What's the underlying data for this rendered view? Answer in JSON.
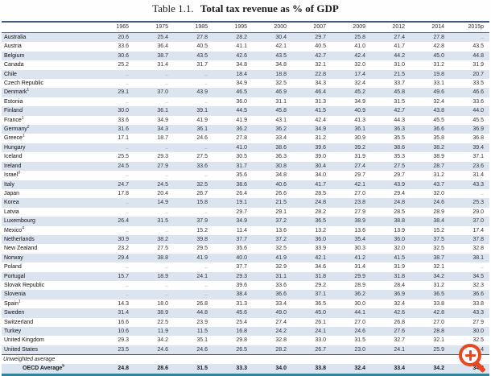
{
  "title": {
    "prefix": "Table 1.1.",
    "main": "Total tax revenue as % of GDP"
  },
  "table": {
    "year_columns": [
      "1965",
      "1975",
      "1985",
      "1995",
      "2000",
      "2007",
      "2009",
      "2012",
      "2014",
      "2015p"
    ],
    "rows": [
      {
        "label": "Australia",
        "sup": "",
        "values": [
          "20.6",
          "25.4",
          "27.8",
          "28.2",
          "30.4",
          "29.7",
          "25.8",
          "27.4",
          "27.8",
          ".."
        ]
      },
      {
        "label": "Austria",
        "sup": "",
        "values": [
          "33.6",
          "36.4",
          "40.5",
          "41.1",
          "42.1",
          "40.5",
          "41.0",
          "41.7",
          "42.8",
          "43.5"
        ]
      },
      {
        "label": "Belgium",
        "sup": "",
        "values": [
          "30.6",
          "38.7",
          "43.5",
          "42.6",
          "43.5",
          "42.7",
          "42.4",
          "44.2",
          "45.0",
          "44.8"
        ]
      },
      {
        "label": "Canada",
        "sup": "",
        "values": [
          "25.2",
          "31.4",
          "31.7",
          "34.8",
          "34.8",
          "32.1",
          "32.0",
          "31.0",
          "31.2",
          "31.9"
        ]
      },
      {
        "label": "Chile",
        "sup": "",
        "values": [
          "..",
          "..",
          "..",
          "18.4",
          "18.8",
          "22.8",
          "17.4",
          "21.5",
          "19.8",
          "20.7"
        ]
      },
      {
        "label": "Czech Republic",
        "sup": "",
        "values": [
          "..",
          "..",
          "..",
          "34.9",
          "32.5",
          "34.3",
          "32.4",
          "33.7",
          "33.1",
          "33.5"
        ]
      },
      {
        "label": "Denmark",
        "sup": "1",
        "values": [
          "29.1",
          "37.0",
          "43.9",
          "46.5",
          "46.9",
          "46.4",
          "45.2",
          "45.8",
          "49.6",
          "46.6"
        ]
      },
      {
        "label": "Estonia",
        "sup": "",
        "values": [
          "..",
          "..",
          "..",
          "36.0",
          "31.1",
          "31.3",
          "34.9",
          "31.5",
          "32.4",
          "33.6"
        ]
      },
      {
        "label": "Finland",
        "sup": "",
        "values": [
          "30.0",
          "36.1",
          "39.1",
          "44.5",
          "45.8",
          "41.5",
          "40.9",
          "42.7",
          "43.8",
          "44.0"
        ]
      },
      {
        "label": "France",
        "sup": "1",
        "values": [
          "33.6",
          "34.9",
          "41.9",
          "41.9",
          "43.1",
          "42.4",
          "41.3",
          "44.3",
          "45.5",
          "45.5"
        ]
      },
      {
        "label": "Germany",
        "sup": "2",
        "values": [
          "31.6",
          "34.3",
          "36.1",
          "36.2",
          "36.2",
          "34.9",
          "36.1",
          "36.3",
          "36.6",
          "36.9"
        ]
      },
      {
        "label": "Greece",
        "sup": "1",
        "values": [
          "17.1",
          "18.7",
          "24.6",
          "27.8",
          "33.4",
          "31.2",
          "30.9",
          "35.5",
          "35.8",
          "36.8"
        ]
      },
      {
        "label": "Hungary",
        "sup": "",
        "values": [
          "..",
          "..",
          "..",
          "41.0",
          "38.6",
          "39.6",
          "39.2",
          "38.6",
          "38.2",
          "39.4"
        ]
      },
      {
        "label": "Iceland",
        "sup": "",
        "values": [
          "25.5",
          "29.3",
          "27.5",
          "30.5",
          "36.3",
          "39.0",
          "31.9",
          "35.3",
          "38.9",
          "37.1"
        ]
      },
      {
        "label": "Ireland",
        "sup": "",
        "values": [
          "24.5",
          "27.9",
          "33.6",
          "31.7",
          "30.8",
          "30.4",
          "27.4",
          "27.5",
          "28.7",
          "23.6"
        ]
      },
      {
        "label": "Israel",
        "sup": "3",
        "values": [
          "..",
          "..",
          "..",
          "35.6",
          "34.8",
          "34.0",
          "29.7",
          "29.7",
          "31.2",
          "31.4"
        ]
      },
      {
        "label": "Italy",
        "sup": "",
        "values": [
          "24.7",
          "24.5",
          "32.5",
          "38.6",
          "40.6",
          "41.7",
          "42.1",
          "43.9",
          "43.7",
          "43.3"
        ]
      },
      {
        "label": "Japan",
        "sup": "",
        "values": [
          "17.8",
          "20.4",
          "26.7",
          "26.4",
          "26.6",
          "28.5",
          "27.0",
          "29.4",
          "32.0",
          ".."
        ]
      },
      {
        "label": "Korea",
        "sup": "",
        "values": [
          "..",
          "14.9",
          "15.8",
          "19.1",
          "21.5",
          "24.8",
          "23.8",
          "24.8",
          "24.6",
          "25.3"
        ]
      },
      {
        "label": "Latvia",
        "sup": "",
        "values": [
          "..",
          "..",
          "..",
          "29.7",
          "29.1",
          "28.2",
          "27.9",
          "28.5",
          "28.9",
          "29.0"
        ]
      },
      {
        "label": "Luxembourg",
        "sup": "",
        "values": [
          "26.4",
          "31.5",
          "37.9",
          "34.9",
          "37.2",
          "36.5",
          "38.9",
          "38.8",
          "38.4",
          "37.0"
        ]
      },
      {
        "label": "Mexico",
        "sup": "4",
        "values": [
          "..",
          "..",
          "15.2",
          "11.4",
          "13.6",
          "13.2",
          "13.6",
          "13.9",
          "15.2",
          "17.4"
        ]
      },
      {
        "label": "Netherlands",
        "sup": "",
        "values": [
          "30.9",
          "38.2",
          "39.8",
          "37.7",
          "37.2",
          "36.0",
          "35.4",
          "36.0",
          "37.5",
          "37.8"
        ]
      },
      {
        "label": "New Zealand",
        "sup": "",
        "values": [
          "23.2",
          "27.5",
          "29.5",
          "35.6",
          "32.5",
          "33.9",
          "30.3",
          "32.0",
          "32.5",
          "32.8"
        ]
      },
      {
        "label": "Norway",
        "sup": "",
        "values": [
          "29.4",
          "38.8",
          "41.9",
          "40.0",
          "41.9",
          "42.1",
          "41.2",
          "41.5",
          "38.7",
          "38.1"
        ]
      },
      {
        "label": "Poland",
        "sup": "",
        "values": [
          "..",
          "..",
          "..",
          "37.7",
          "32.9",
          "34.6",
          "31.4",
          "31.9",
          "32.1",
          ".."
        ]
      },
      {
        "label": "Portugal",
        "sup": "",
        "values": [
          "15.7",
          "18.9",
          "24.1",
          "29.3",
          "31.1",
          "31.8",
          "29.9",
          "31.8",
          "34.2",
          "34.5"
        ]
      },
      {
        "label": "Slovak Republic",
        "sup": "",
        "values": [
          "..",
          "..",
          "..",
          "39.6",
          "33.6",
          "29.2",
          "28.9",
          "28.4",
          "31.2",
          "32.3"
        ]
      },
      {
        "label": "Slovenia",
        "sup": "",
        "values": [
          "..",
          "..",
          "..",
          "38.4",
          "36.6",
          "37.1",
          "36.2",
          "36.9",
          "36.5",
          "36.6"
        ]
      },
      {
        "label": "Spain",
        "sup": "1",
        "values": [
          "14.3",
          "18.0",
          "26.8",
          "31.3",
          "33.4",
          "36.5",
          "30.0",
          "32.4",
          "33.8",
          "33.8"
        ]
      },
      {
        "label": "Sweden",
        "sup": "",
        "values": [
          "31.4",
          "38.9",
          "44.8",
          "45.6",
          "49.0",
          "45.0",
          "44.1",
          "42.6",
          "42.8",
          "43.3"
        ]
      },
      {
        "label": "Switzerland",
        "sup": "",
        "values": [
          "16.6",
          "22.5",
          "23.9",
          "25.4",
          "27.4",
          "26.1",
          "27.0",
          "26.8",
          "27.0",
          "27.9"
        ]
      },
      {
        "label": "Turkey",
        "sup": "",
        "values": [
          "10.6",
          "11.9",
          "11.5",
          "16.8",
          "24.2",
          "24.1",
          "24.6",
          "27.6",
          "28.8",
          "30.0"
        ]
      },
      {
        "label": "United Kingdom",
        "sup": "",
        "values": [
          "29.3",
          "34.2",
          "35.1",
          "29.8",
          "32.8",
          "33.0",
          "31.5",
          "32.7",
          "32.1",
          "32.5"
        ]
      },
      {
        "label": "United States",
        "sup": "",
        "values": [
          "23.5",
          "24.6",
          "24.6",
          "26.5",
          "28.2",
          "26.7",
          "23.0",
          "24.1",
          "25.9",
          "26.4"
        ]
      }
    ],
    "footer": {
      "unweighted_label": "Unweighted average",
      "oecd": {
        "label": "OECD Average",
        "sup": "5",
        "values": [
          "24.8",
          "28.6",
          "31.5",
          "33.3",
          "34.0",
          "33.8",
          "32.4",
          "33.4",
          "34.2",
          "34.3"
        ]
      }
    }
  },
  "icons": {
    "zoom_in": "magnifier-plus-icon"
  },
  "colors": {
    "row_stripe": "#dce4f0",
    "top_rule": "#44597e",
    "header_rule": "#5a6472",
    "footer_rule": "#4d4d4d",
    "bottom_rule": "#31849b",
    "icon_accent": "#e8481f",
    "missing_value": "#8a8a8a"
  }
}
